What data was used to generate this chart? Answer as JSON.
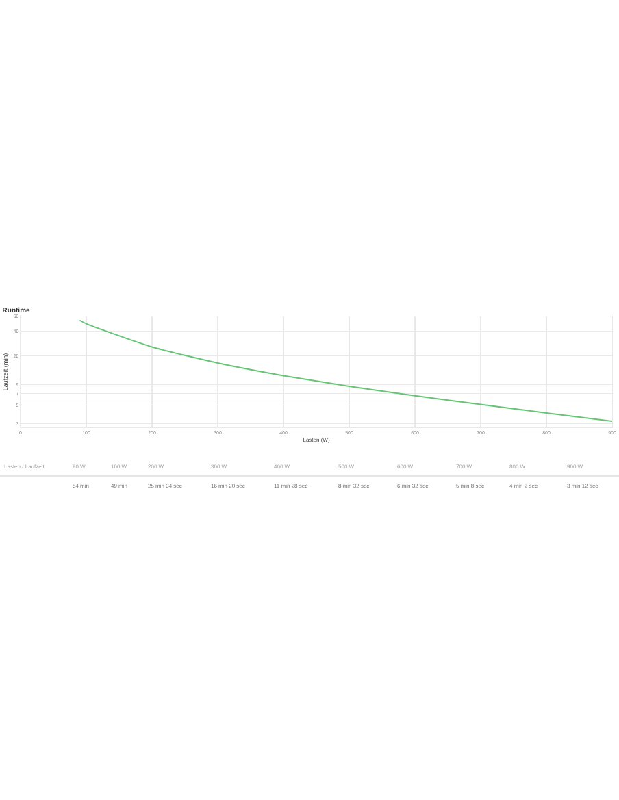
{
  "chart_data": {
    "type": "line",
    "title": "Runtime",
    "xlabel": "Lasten (W)",
    "ylabel": "Laufzeit (min)",
    "x": [
      90,
      100,
      200,
      300,
      400,
      500,
      600,
      700,
      800,
      900
    ],
    "values": [
      54,
      49,
      25.57,
      16.33,
      11.47,
      8.53,
      6.53,
      5.13,
      4.03,
      3.2
    ],
    "color": "#66c476",
    "marker": "none",
    "line_style": "solid",
    "xlim": [
      0,
      900
    ],
    "xticks": [
      0,
      100,
      200,
      300,
      400,
      500,
      600,
      700,
      800,
      900
    ],
    "ylim": [
      2.7,
      60
    ],
    "yticks": [
      3,
      5,
      7,
      9,
      20,
      40,
      60
    ],
    "log": true,
    "grid": true,
    "annotations": [
      "Lasten / Laufzeit",
      "90 W",
      "100 W",
      "200 W",
      "300 W",
      "400 W",
      "500 W",
      "600 W",
      "700 W",
      "800 W",
      "900 W",
      "54 min",
      "49 min",
      "25 min 34 sec",
      "16 min 20 sec",
      "11 min 28 sec",
      "8 min 32 sec",
      "6 min 32 sec",
      "5 min 8 sec",
      "4 min 2 sec",
      "3 min 12 sec"
    ]
  }
}
